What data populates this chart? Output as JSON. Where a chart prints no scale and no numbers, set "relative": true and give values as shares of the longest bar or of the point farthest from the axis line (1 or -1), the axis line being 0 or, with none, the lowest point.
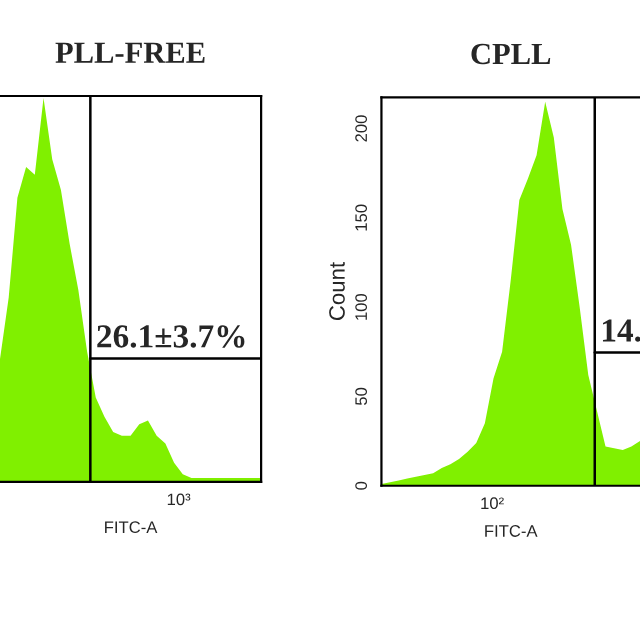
{
  "chart_data": [
    {
      "type": "area",
      "title": "PLL-FREE",
      "xlabel": "FITC-A",
      "relative": true,
      "tick_labels": false,
      "grid": false,
      "legend": false,
      "categories": [
        null,
        null,
        null,
        null,
        null,
        null,
        null,
        null,
        null,
        null,
        null,
        null,
        null,
        null,
        null,
        null,
        null,
        null,
        null,
        null,
        null,
        null,
        null,
        null,
        null,
        null,
        null,
        null,
        null,
        null,
        null
      ],
      "series": [
        {
          "color": "#80f000",
          "values": [
            0.32,
            0.48,
            0.74,
            0.82,
            0.8,
            1,
            0.84,
            0.76,
            0.62,
            0.5,
            0.34,
            0.22,
            0.17,
            0.13,
            0.12,
            0.12,
            0.15,
            0.16,
            0.12,
            0.1,
            0.05,
            0.02,
            0.01,
            0.01,
            0.01,
            0.01,
            0.01,
            0.01,
            0.01,
            0.01,
            0.01
          ]
        }
      ],
      "annotations": [
        "26.1±3.7%",
        "10³"
      ]
    },
    {
      "type": "area",
      "title": "CPLL",
      "xlabel": "FITC-A",
      "ylabel": "Count",
      "tick_labels": "y",
      "grid": false,
      "legend": false,
      "categories": [
        null,
        null,
        null,
        null,
        null,
        null,
        null,
        null,
        null,
        null,
        null,
        null,
        null,
        null,
        null,
        null,
        null,
        null,
        null,
        null,
        null,
        null,
        null,
        null,
        null,
        null,
        null,
        null,
        null,
        null,
        null
      ],
      "series": [
        {
          "color": "#80f000",
          "values": [
            1,
            2,
            3,
            4,
            5,
            6,
            7,
            10,
            12,
            15,
            19,
            24,
            35,
            60,
            75,
            115,
            160,
            172,
            185,
            215,
            195,
            155,
            135,
            100,
            62,
            42,
            22,
            21,
            20,
            22,
            25
          ]
        }
      ],
      "ylim": [
        0,
        217.5
      ],
      "yticks": [
        0,
        50,
        100,
        150,
        200
      ],
      "annotations": [
        "14.",
        "10²"
      ]
    }
  ]
}
